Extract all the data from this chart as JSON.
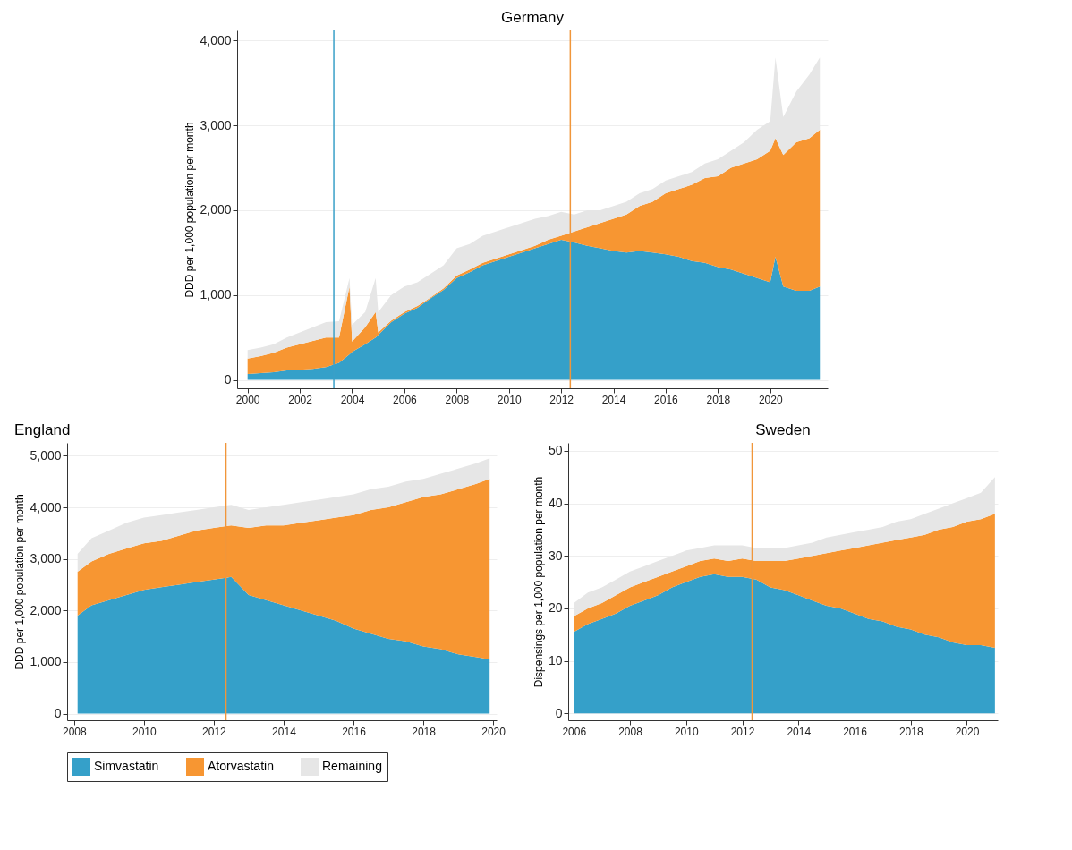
{
  "chart_data": [
    {
      "type": "area",
      "title": "Germany",
      "ylabel": "DDD per 1,000 population per month",
      "stacked": true,
      "grid": "y",
      "legend": "bottom",
      "x": [
        2000,
        2000.5,
        2001,
        2001.5,
        2002,
        2002.5,
        2003,
        2003.5,
        2003.9,
        2004,
        2004.5,
        2004.9,
        2005,
        2005.5,
        2006,
        2006.5,
        2007,
        2007.5,
        2008,
        2008.5,
        2009,
        2009.5,
        2010,
        2010.5,
        2011,
        2011.5,
        2012,
        2012.5,
        2013,
        2013.5,
        2014,
        2014.5,
        2015,
        2015.5,
        2016,
        2016.5,
        2017,
        2017.5,
        2018,
        2018.5,
        2019,
        2019.5,
        2020,
        2020.2,
        2020.5,
        2021,
        2021.5,
        2021.9
      ],
      "series": [
        {
          "name": "Simvastatin",
          "color": "#35a0c9",
          "values": [
            70,
            80,
            90,
            110,
            120,
            130,
            150,
            200,
            300,
            330,
            420,
            500,
            530,
            680,
            780,
            850,
            960,
            1060,
            1200,
            1270,
            1350,
            1400,
            1450,
            1500,
            1550,
            1600,
            1650,
            1620,
            1580,
            1550,
            1520,
            1500,
            1520,
            1500,
            1480,
            1450,
            1400,
            1380,
            1330,
            1300,
            1250,
            1200,
            1150,
            1450,
            1100,
            1050,
            1050,
            1100
          ]
        },
        {
          "name": "Atorvastatin",
          "color": "#f79632",
          "values": [
            180,
            200,
            230,
            270,
            300,
            330,
            350,
            300,
            800,
            120,
            200,
            300,
            30,
            20,
            20,
            20,
            10,
            20,
            30,
            30,
            30,
            30,
            30,
            30,
            30,
            50,
            50,
            130,
            220,
            300,
            380,
            450,
            530,
            600,
            720,
            800,
            900,
            1000,
            1070,
            1200,
            1300,
            1400,
            1550,
            1400,
            1550,
            1750,
            1800,
            1850
          ]
        },
        {
          "name": "Remaining",
          "color": "#e6e6e6",
          "values": [
            100,
            100,
            100,
            120,
            140,
            160,
            180,
            190,
            100,
            200,
            180,
            400,
            240,
            300,
            300,
            280,
            280,
            270,
            320,
            300,
            320,
            320,
            320,
            320,
            320,
            280,
            280,
            200,
            200,
            150,
            150,
            150,
            150,
            150,
            150,
            150,
            150,
            170,
            200,
            200,
            250,
            350,
            350,
            950,
            450,
            600,
            750,
            850
          ]
        }
      ],
      "xlim": [
        1999.6,
        2022.2
      ],
      "xticks": [
        2000,
        2002,
        2004,
        2006,
        2008,
        2010,
        2012,
        2014,
        2016,
        2018,
        2020
      ],
      "ylim": [
        -100,
        4120
      ],
      "yticks": [
        {
          "value": 0,
          "label": "0"
        },
        {
          "value": 1000,
          "label": "1,000"
        },
        {
          "value": 2000,
          "label": "2,000"
        },
        {
          "value": 3000,
          "label": "3,000"
        },
        {
          "value": 4000,
          "label": "4,000"
        }
      ],
      "ref_lines": [
        {
          "axis": "x",
          "value": 2003.3,
          "color": "#3aa0c8"
        },
        {
          "axis": "x",
          "value": 2012.35,
          "color": "#f0963a"
        }
      ]
    },
    {
      "type": "area",
      "title": "England",
      "ylabel": "DDD per 1,000 population per month",
      "stacked": true,
      "grid": "y",
      "legend": "bottom",
      "x": [
        2008.1,
        2008.5,
        2009,
        2009.5,
        2010,
        2010.5,
        2011,
        2011.5,
        2012,
        2012.5,
        2013,
        2013.5,
        2014,
        2014.5,
        2015,
        2015.5,
        2016,
        2016.5,
        2017,
        2017.5,
        2018,
        2018.5,
        2019,
        2019.5,
        2019.9
      ],
      "series": [
        {
          "name": "Simvastatin",
          "color": "#35a0c9",
          "values": [
            1900,
            2100,
            2200,
            2300,
            2400,
            2450,
            2500,
            2550,
            2600,
            2650,
            2300,
            2200,
            2100,
            2000,
            1900,
            1800,
            1650,
            1550,
            1450,
            1400,
            1300,
            1250,
            1150,
            1100,
            1050
          ]
        },
        {
          "name": "Atorvastatin",
          "color": "#f79632",
          "values": [
            850,
            850,
            900,
            900,
            900,
            900,
            950,
            1000,
            1000,
            1000,
            1300,
            1450,
            1550,
            1700,
            1850,
            2000,
            2200,
            2400,
            2550,
            2700,
            2900,
            3000,
            3200,
            3350,
            3500
          ]
        },
        {
          "name": "Remaining",
          "color": "#e6e6e6",
          "values": [
            350,
            450,
            450,
            500,
            500,
            500,
            450,
            400,
            400,
            400,
            350,
            350,
            400,
            400,
            400,
            400,
            400,
            400,
            400,
            400,
            350,
            400,
            400,
            400,
            400
          ]
        }
      ],
      "xlim": [
        2007.8,
        2020.1
      ],
      "xticks": [
        2008,
        2010,
        2012,
        2014,
        2016,
        2018,
        2020
      ],
      "ylim": [
        -130,
        5250
      ],
      "yticks": [
        {
          "value": 0,
          "label": "0"
        },
        {
          "value": 1000,
          "label": "1,000"
        },
        {
          "value": 2000,
          "label": "2,000"
        },
        {
          "value": 3000,
          "label": "3,000"
        },
        {
          "value": 4000,
          "label": "4,000"
        },
        {
          "value": 5000,
          "label": "5,000"
        }
      ],
      "ref_lines": [
        {
          "axis": "x",
          "value": 2012.35,
          "color": "#f0963a"
        }
      ]
    },
    {
      "type": "area",
      "title": "Sweden",
      "ylabel": "Dispensings per 1,000 population per month",
      "stacked": true,
      "grid": "y",
      "legend": "bottom",
      "x": [
        2006,
        2006.5,
        2007,
        2007.5,
        2008,
        2008.5,
        2009,
        2009.5,
        2010,
        2010.5,
        2011,
        2011.5,
        2012,
        2012.5,
        2013,
        2013.5,
        2014,
        2014.5,
        2015,
        2015.5,
        2016,
        2016.5,
        2017,
        2017.5,
        2018,
        2018.5,
        2019,
        2019.5,
        2020,
        2020.5,
        2021
      ],
      "series": [
        {
          "name": "Simvastatin",
          "color": "#35a0c9",
          "values": [
            15.5,
            17,
            18,
            19,
            20.5,
            21.5,
            22.5,
            24,
            25,
            26,
            26.5,
            26,
            26,
            25.5,
            24,
            23.5,
            22.5,
            21.5,
            20.5,
            20,
            19,
            18,
            17.5,
            16.5,
            16,
            15,
            14.5,
            13.5,
            13,
            13,
            12.5
          ]
        },
        {
          "name": "Atorvastatin",
          "color": "#f79632",
          "values": [
            3,
            3,
            3,
            3.5,
            3.5,
            3.5,
            3.5,
            3,
            3,
            3,
            3,
            3,
            3.5,
            3.5,
            5,
            5.5,
            7,
            8.5,
            10,
            11,
            12.5,
            14,
            15,
            16.5,
            17.5,
            19,
            20.5,
            22,
            23.5,
            24,
            25.5
          ]
        },
        {
          "name": "Remaining",
          "color": "#e6e6e6",
          "values": [
            2.5,
            3,
            3,
            3,
            3,
            3,
            3,
            3,
            3,
            2.5,
            2.5,
            3,
            2.5,
            2.5,
            2.5,
            2.5,
            2.5,
            2.5,
            3,
            3,
            3,
            3,
            3,
            3.5,
            3.5,
            4,
            4,
            4.5,
            4.5,
            5,
            7
          ]
        }
      ],
      "xlim": [
        2005.8,
        2021.1
      ],
      "xticks": [
        2006,
        2008,
        2010,
        2012,
        2014,
        2016,
        2018,
        2020
      ],
      "ylim": [
        -1.3,
        51.5
      ],
      "yticks": [
        0,
        10,
        20,
        30,
        40,
        50
      ],
      "ref_lines": [
        {
          "axis": "x",
          "value": 2012.35,
          "color": "#f0963a"
        }
      ]
    }
  ]
}
